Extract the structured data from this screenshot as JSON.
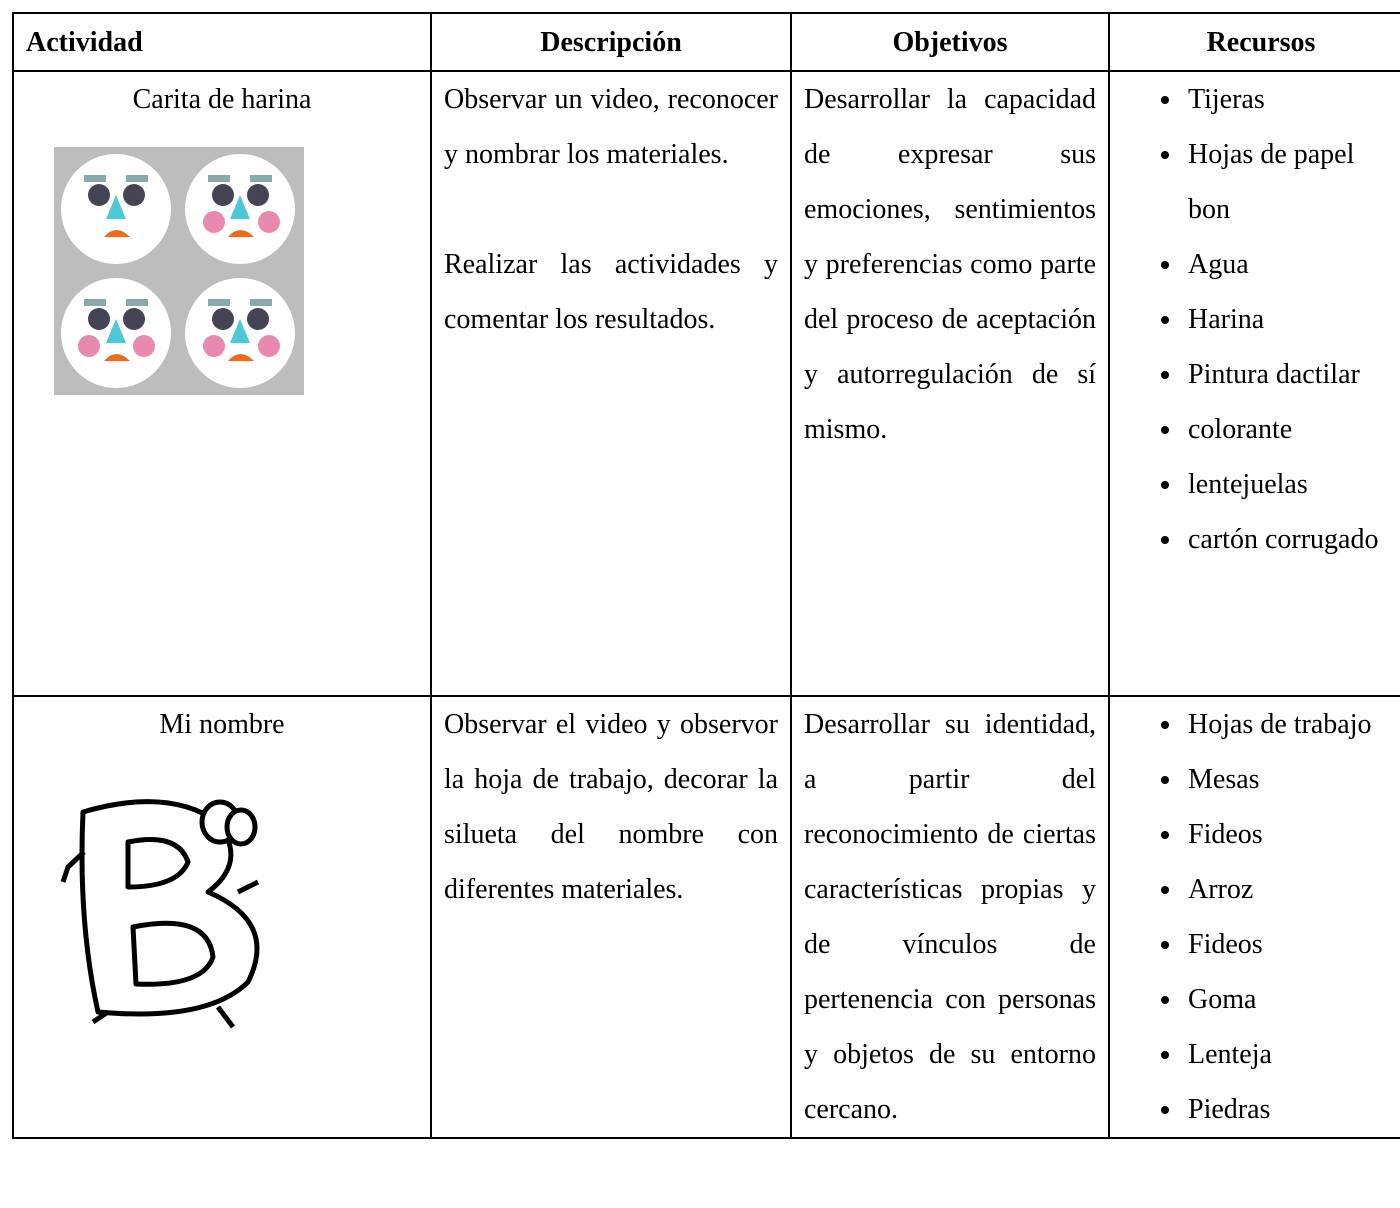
{
  "table": {
    "header": [
      "Actividad",
      "Descripción",
      "Objetivos",
      "Recursos"
    ],
    "rows": [
      {
        "actividad": "Carita de harina",
        "descripcion": [
          "Observar un video, reconocer y nombrar los materiales.",
          " Realizar las actividades y comentar los resultados."
        ],
        "objetivos": "Desarrollar la capacidad de expresar sus emociones, sentimientos y preferencias como parte del proceso de aceptación y autorregulación de sí mismo.",
        "recursos": [
          "Tijeras",
          "Hojas de papel bon",
          "Agua",
          "Harina",
          "Pintura dactilar",
          "colorante",
          "lentejuelas",
          "cartón corrugado"
        ]
      },
      {
        "actividad": "Mi nombre",
        "descripcion": [
          "Observar el video y observor la hoja de trabajo, decorar la silueta del nombre con diferentes materiales."
        ],
        "objetivos": "Desarrollar su identidad, a partir del reconocimiento de ciertas características propias y de vínculos de pertenencia con personas y objetos de su entorno cercano.",
        "recursos": [
          "Hojas de trabajo",
          "Mesas",
          "Fideos",
          "Arroz",
          "Fideos",
          "Goma",
          "Lenteja",
          "Piedras"
        ]
      }
    ]
  }
}
